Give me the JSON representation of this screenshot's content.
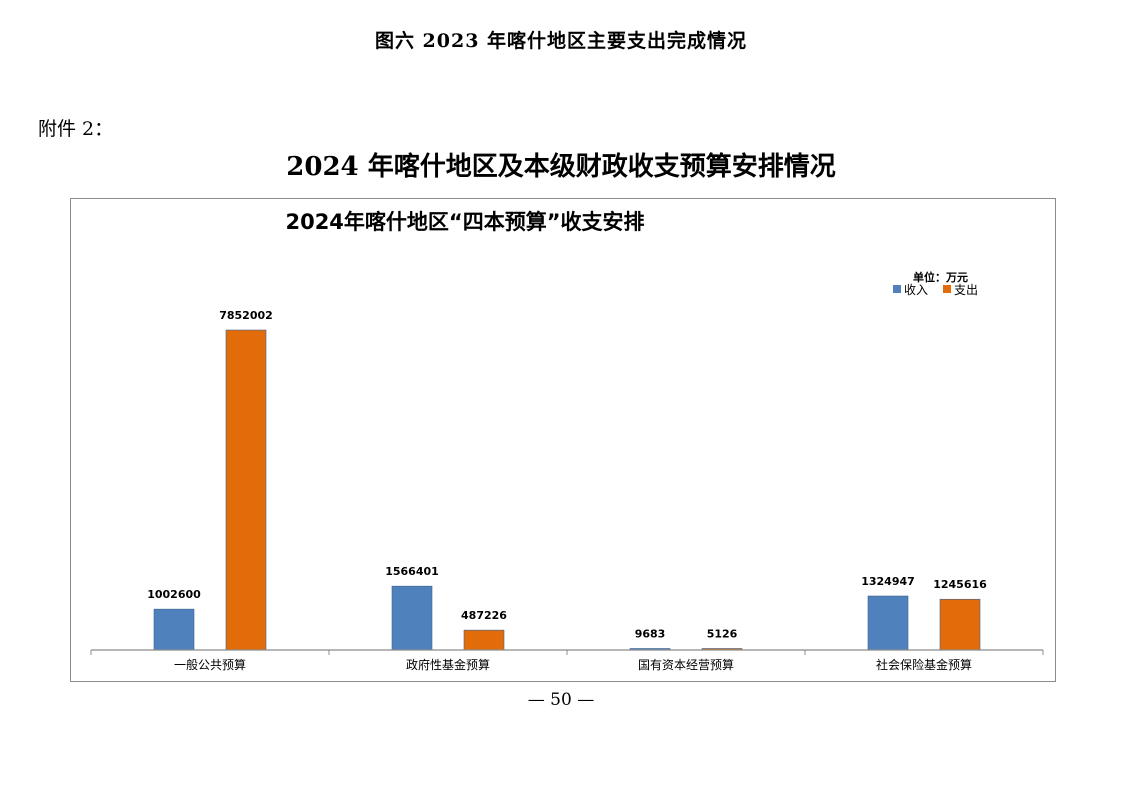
{
  "document": {
    "figure_caption": "图六  2023 年喀什地区主要支出完成情况",
    "attachment_label": "附件 2：",
    "page_title": "2024 年喀什地区及本级财政收支预算安排情况",
    "page_number": "— 50 —"
  },
  "chart_data": {
    "type": "bar",
    "title": "2024年喀什地区“四本预算”收支安排",
    "unit": "单位：万元",
    "categories": [
      "一般公共预算",
      "政府性基金预算",
      "国有资本经营预算",
      "社会保险基金预算"
    ],
    "series": [
      {
        "name": "收入",
        "color": "#4f81bd",
        "values": [
          1002600,
          1566401,
          9683,
          1324947
        ]
      },
      {
        "name": "支出",
        "color": "#e36c0a",
        "values": [
          7852002,
          487226,
          5126,
          1245616
        ]
      }
    ],
    "ylim": [
      0,
      8000000
    ],
    "legend_position": "top-right",
    "grid": false
  }
}
